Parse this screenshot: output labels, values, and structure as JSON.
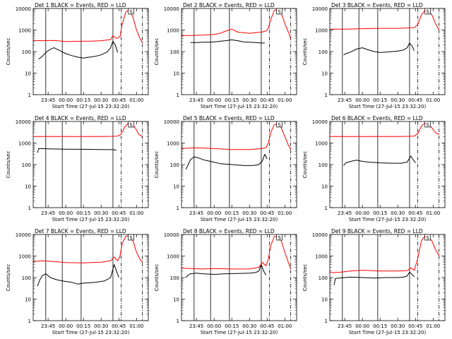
{
  "figure": {
    "ylabel": "Counts/sec",
    "xlabel": "Start Time (27-Jul-15 23:32:20)",
    "ytick_labels": [
      "1",
      "10",
      "100",
      "1000",
      "10000"
    ],
    "xtick_labels": [
      "23:45",
      "00:00",
      "00:15",
      "00:30",
      "00:45",
      "01:00"
    ]
  },
  "chart_data": [
    {
      "type": "line",
      "title": "Det 1 BLACK = Events, RED = LLD",
      "xlabel": "Start Time (27-Jul-15 23:32:20)",
      "ylabel": "Counts/sec",
      "yscale": "log",
      "ylim": [
        1,
        10000
      ],
      "xlim": [
        "23:32:20",
        "01:10:00"
      ],
      "vlines_solid": [
        "23:43",
        "23:57",
        "00:13",
        "00:40"
      ],
      "vlines_dashed": [
        "00:47",
        "01:05"
      ],
      "marker_label": "S",
      "series": [
        {
          "name": "Events",
          "color": "#000000",
          "x": [
            "23:37",
            "23:40",
            "23:43",
            "23:46",
            "23:50",
            "23:55",
            "00:00",
            "00:05",
            "00:10",
            "00:15",
            "00:20",
            "00:25",
            "00:30",
            "00:35",
            "00:38",
            "00:40",
            "00:42",
            "00:44"
          ],
          "y": [
            45,
            60,
            90,
            120,
            150,
            110,
            80,
            65,
            55,
            50,
            55,
            60,
            70,
            95,
            150,
            300,
            200,
            90
          ]
        },
        {
          "name": "LLD",
          "color": "#ff0000",
          "x": [
            "23:32:20",
            "23:40",
            "23:50",
            "00:00",
            "00:10",
            "00:20",
            "00:30",
            "00:38",
            "00:40",
            "00:43",
            "00:46",
            "00:48",
            "00:51",
            "00:54",
            "00:57",
            "01:00",
            "01:03",
            "01:05"
          ],
          "y": [
            330,
            320,
            330,
            290,
            300,
            300,
            320,
            360,
            550,
            400,
            500,
            2000,
            7000,
            8500,
            4000,
            1000,
            400,
            250
          ]
        }
      ]
    },
    {
      "type": "line",
      "title": "Det 2 BLACK = Events, RED = LLD",
      "xlabel": "Start Time (27-Jul-15 23:32:20)",
      "ylabel": "Counts/sec",
      "yscale": "log",
      "ylim": [
        1,
        10000
      ],
      "xlim": [
        "23:32:20",
        "01:10:00"
      ],
      "vlines_solid": [
        "23:43",
        "23:57",
        "00:13",
        "00:40"
      ],
      "vlines_dashed": [
        "00:47",
        "01:05"
      ],
      "marker_label": "S",
      "series": [
        {
          "name": "Events",
          "color": "#000000",
          "x": [
            "23:40",
            "23:45",
            "23:50",
            "23:55",
            "00:00",
            "00:05",
            "00:10",
            "00:15",
            "00:20",
            "00:25",
            "00:30",
            "00:35",
            "00:40",
            "00:43"
          ],
          "y": [
            260,
            260,
            270,
            270,
            280,
            300,
            320,
            350,
            320,
            280,
            270,
            260,
            250,
            250
          ]
        },
        {
          "name": "LLD",
          "color": "#ff0000",
          "x": [
            "23:32:20",
            "23:40",
            "23:50",
            "00:00",
            "00:05",
            "00:10",
            "00:15",
            "00:20",
            "00:25",
            "00:30",
            "00:35",
            "00:40",
            "00:44",
            "00:46",
            "00:48",
            "00:51",
            "00:54",
            "00:57",
            "01:00",
            "01:03",
            "01:05"
          ],
          "y": [
            550,
            560,
            580,
            620,
            700,
            900,
            1100,
            800,
            750,
            700,
            750,
            800,
            900,
            1200,
            3000,
            8000,
            9000,
            6000,
            2000,
            800,
            400
          ]
        }
      ]
    },
    {
      "type": "line",
      "title": "Det 3 BLACK = Events, RED = LLD",
      "xlabel": "Start Time (27-Jul-15 23:32:20)",
      "ylabel": "Counts/sec",
      "yscale": "log",
      "ylim": [
        1,
        10000
      ],
      "xlim": [
        "23:32:20",
        "01:10:00"
      ],
      "vlines_solid": [
        "23:43",
        "23:57",
        "00:13",
        "00:40"
      ],
      "vlines_dashed": [
        "00:47",
        "01:05"
      ],
      "marker_label": "S",
      "series": [
        {
          "name": "Events",
          "color": "#000000",
          "x": [
            "23:44",
            "23:46",
            "23:50",
            "23:55",
            "00:00",
            "00:05",
            "00:10",
            "00:15",
            "00:20",
            "00:25",
            "00:30",
            "00:35",
            "00:38",
            "00:40",
            "00:42",
            "00:44"
          ],
          "y": [
            70,
            80,
            95,
            130,
            150,
            120,
            100,
            90,
            95,
            100,
            105,
            120,
            150,
            250,
            180,
            110
          ]
        },
        {
          "name": "LLD",
          "color": "#ff0000",
          "x": [
            "23:32:20",
            "23:45",
            "00:00",
            "00:15",
            "00:30",
            "00:40",
            "00:44",
            "00:47",
            "00:50",
            "00:53",
            "00:56",
            "00:59",
            "01:02",
            "01:05"
          ],
          "y": [
            1100,
            1100,
            1150,
            1200,
            1200,
            1250,
            1300,
            1800,
            5000,
            8000,
            8500,
            5000,
            2000,
            1000
          ]
        }
      ]
    },
    {
      "type": "line",
      "title": "Det 4 BLACK = Events, RED = LLD",
      "xlabel": "Start Time (27-Jul-15 23:32:20)",
      "ylabel": "Counts/sec",
      "yscale": "log",
      "ylim": [
        1,
        10000
      ],
      "xlim": [
        "23:32:20",
        "01:10:00"
      ],
      "vlines_solid": [
        "23:43",
        "23:57",
        "00:13",
        "00:40"
      ],
      "vlines_dashed": [
        "00:47",
        "01:05"
      ],
      "marker_label": "S",
      "series": [
        {
          "name": "Events",
          "color": "#000000",
          "x": [
            "23:36",
            "23:37",
            "23:45",
            "00:00",
            "00:15",
            "00:30",
            "00:40",
            "00:43"
          ],
          "y": [
            350,
            560,
            540,
            520,
            510,
            500,
            490,
            470
          ]
        },
        {
          "name": "LLD",
          "color": "#ff0000",
          "x": [
            "23:32:20",
            "23:45",
            "00:00",
            "00:15",
            "00:30",
            "00:40",
            "00:44",
            "00:47",
            "00:50",
            "00:53",
            "00:56",
            "00:59",
            "01:02",
            "01:05"
          ],
          "y": [
            2000,
            2000,
            2000,
            2000,
            2000,
            2050,
            2100,
            2600,
            5500,
            8500,
            8000,
            5000,
            2500,
            2000
          ]
        }
      ]
    },
    {
      "type": "line",
      "title": "Det 5 BLACK = Events, RED = LLD",
      "xlabel": "Start Time (27-Jul-15 23:32:20)",
      "ylabel": "Counts/sec",
      "yscale": "log",
      "ylim": [
        1,
        10000
      ],
      "xlim": [
        "23:32:20",
        "01:10:00"
      ],
      "vlines_solid": [
        "23:43",
        "23:57",
        "00:13",
        "00:40"
      ],
      "vlines_dashed": [
        "00:47",
        "01:05"
      ],
      "marker_label": "S",
      "series": [
        {
          "name": "Events",
          "color": "#000000",
          "x": [
            "23:36",
            "23:38",
            "23:40",
            "23:43",
            "23:47",
            "23:52",
            "23:57",
            "00:05",
            "00:15",
            "00:25",
            "00:33",
            "00:38",
            "00:41",
            "00:43",
            "00:45"
          ],
          "y": [
            60,
            100,
            170,
            230,
            200,
            160,
            140,
            110,
            100,
            90,
            90,
            100,
            150,
            300,
            180
          ]
        },
        {
          "name": "LLD",
          "color": "#ff0000",
          "x": [
            "23:32:20",
            "23:45",
            "00:00",
            "00:15",
            "00:30",
            "00:40",
            "00:44",
            "00:46",
            "00:48",
            "00:51",
            "00:54",
            "00:57",
            "01:00",
            "01:03",
            "01:05"
          ],
          "y": [
            550,
            600,
            550,
            500,
            500,
            550,
            600,
            1000,
            3000,
            7000,
            8000,
            5000,
            2000,
            800,
            500
          ]
        }
      ]
    },
    {
      "type": "line",
      "title": "Det 6 BLACK = Events, RED = LLD",
      "xlabel": "Start Time (27-Jul-15 23:32:20)",
      "ylabel": "Counts/sec",
      "yscale": "log",
      "ylim": [
        1,
        10000
      ],
      "xlim": [
        "23:32:20",
        "01:10:00"
      ],
      "vlines_solid": [
        "23:43",
        "23:57",
        "00:13",
        "00:40"
      ],
      "vlines_dashed": [
        "00:47",
        "01:05"
      ],
      "marker_label": "S",
      "series": [
        {
          "name": "Events",
          "color": "#000000",
          "x": [
            "23:44",
            "23:46",
            "23:50",
            "23:55",
            "00:00",
            "00:05",
            "00:15",
            "00:25",
            "00:33",
            "00:38",
            "00:41",
            "00:43",
            "00:45"
          ],
          "y": [
            90,
            120,
            140,
            160,
            140,
            130,
            120,
            115,
            115,
            130,
            250,
            170,
            120
          ]
        },
        {
          "name": "LLD",
          "color": "#ff0000",
          "x": [
            "23:32:20",
            "23:45",
            "00:00",
            "00:15",
            "00:30",
            "00:40",
            "00:44",
            "00:47",
            "00:50",
            "00:53",
            "00:56",
            "00:59",
            "01:02",
            "01:05"
          ],
          "y": [
            2000,
            2000,
            2000,
            2000,
            2000,
            2050,
            2100,
            2800,
            6000,
            8500,
            8000,
            5000,
            3000,
            2500
          ]
        }
      ]
    },
    {
      "type": "line",
      "title": "Det 7 BLACK = Events, RED = LLD",
      "xlabel": "Start Time (27-Jul-15 23:32:20)",
      "ylabel": "Counts/sec",
      "yscale": "log",
      "ylim": [
        1,
        10000
      ],
      "xlim": [
        "23:32:20",
        "01:10:00"
      ],
      "vlines_solid": [
        "23:43",
        "23:57",
        "00:13",
        "00:40"
      ],
      "vlines_dashed": [
        "00:47",
        "01:05"
      ],
      "marker_label": "S",
      "series": [
        {
          "name": "Events",
          "color": "#000000",
          "x": [
            "23:36",
            "23:38",
            "23:40",
            "23:43",
            "23:47",
            "23:52",
            "23:57",
            "00:05",
            "00:10",
            "00:15",
            "00:25",
            "00:33",
            "00:38",
            "00:41",
            "00:43",
            "00:45"
          ],
          "y": [
            40,
            80,
            120,
            150,
            100,
            80,
            70,
            60,
            50,
            55,
            60,
            70,
            100,
            400,
            200,
            100
          ]
        },
        {
          "name": "LLD",
          "color": "#ff0000",
          "x": [
            "23:32:20",
            "23:40",
            "23:50",
            "00:00",
            "00:15",
            "00:30",
            "00:38",
            "00:41",
            "00:44",
            "00:46",
            "00:48",
            "00:51",
            "00:54",
            "00:57",
            "01:00",
            "01:03",
            "01:05"
          ],
          "y": [
            550,
            600,
            550,
            500,
            480,
            520,
            600,
            900,
            600,
            1000,
            4000,
            8500,
            8500,
            5000,
            1500,
            700,
            500
          ]
        }
      ]
    },
    {
      "type": "line",
      "title": "Det 8 BLACK = Events, RED = LLD",
      "xlabel": "Start Time (27-Jul-15 23:32:20)",
      "ylabel": "Counts/sec",
      "yscale": "log",
      "ylim": [
        1,
        10000
      ],
      "xlim": [
        "23:32:20",
        "01:10:00"
      ],
      "vlines_solid": [
        "23:43",
        "23:57",
        "00:13",
        "00:40"
      ],
      "vlines_dashed": [
        "00:47",
        "01:05"
      ],
      "marker_label": "S",
      "series": [
        {
          "name": "Events",
          "color": "#000000",
          "x": [
            "23:36",
            "23:38",
            "23:40",
            "23:45",
            "23:50",
            "00:00",
            "00:10",
            "00:20",
            "00:30",
            "00:35",
            "00:38",
            "00:40",
            "00:42",
            "00:44"
          ],
          "y": [
            100,
            130,
            150,
            160,
            150,
            140,
            150,
            155,
            160,
            170,
            200,
            400,
            200,
            130
          ]
        },
        {
          "name": "LLD",
          "color": "#ff0000",
          "x": [
            "23:32:20",
            "23:40",
            "23:50",
            "00:00",
            "00:15",
            "00:30",
            "00:38",
            "00:41",
            "00:44",
            "00:46",
            "00:48",
            "00:51",
            "00:54",
            "00:57",
            "01:00",
            "01:03",
            "01:05"
          ],
          "y": [
            270,
            260,
            250,
            260,
            250,
            250,
            300,
            500,
            350,
            700,
            3000,
            8000,
            8500,
            5000,
            1500,
            500,
            250
          ]
        }
      ]
    },
    {
      "type": "line",
      "title": "Det 9 BLACK = Events, RED = LLD",
      "xlabel": "Start Time (27-Jul-15 23:32:20)",
      "ylabel": "Counts/sec",
      "yscale": "log",
      "ylim": [
        1,
        10000
      ],
      "xlim": [
        "23:32:20",
        "01:10:00"
      ],
      "vlines_solid": [
        "23:43",
        "23:57",
        "00:13",
        "00:40"
      ],
      "vlines_dashed": [
        "00:47",
        "01:05"
      ],
      "marker_label": "S",
      "series": [
        {
          "name": "Events",
          "color": "#000000",
          "x": [
            "23:36",
            "23:37",
            "23:40",
            "23:45",
            "23:50",
            "00:00",
            "00:10",
            "00:20",
            "00:30",
            "00:35",
            "00:38",
            "00:40",
            "00:42",
            "00:44"
          ],
          "y": [
            45,
            90,
            95,
            100,
            105,
            100,
            95,
            100,
            100,
            105,
            120,
            180,
            140,
            110
          ]
        },
        {
          "name": "LLD",
          "color": "#ff0000",
          "x": [
            "23:32:20",
            "23:40",
            "23:50",
            "00:00",
            "00:15",
            "00:30",
            "00:38",
            "00:41",
            "00:44",
            "00:47",
            "00:50",
            "00:53",
            "00:56",
            "00:59",
            "01:02",
            "01:05"
          ],
          "y": [
            170,
            175,
            200,
            220,
            200,
            200,
            210,
            280,
            220,
            800,
            5000,
            8500,
            8000,
            5000,
            2000,
            1000
          ]
        }
      ]
    }
  ]
}
